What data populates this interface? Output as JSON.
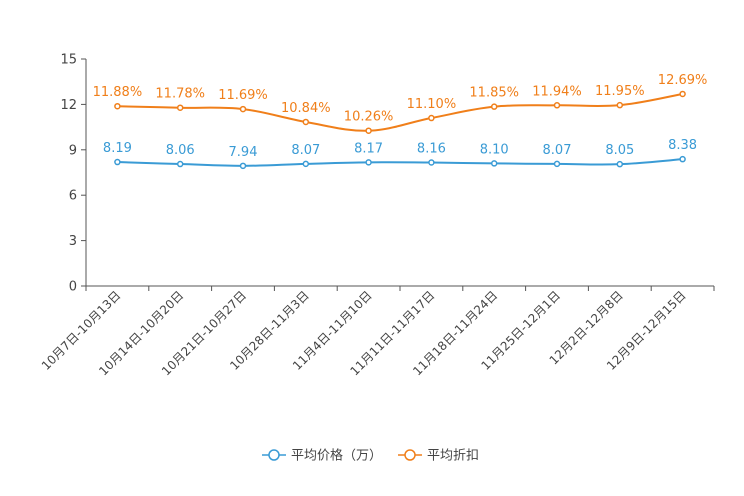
{
  "chart_data": {
    "type": "line",
    "title": "",
    "xlabel": "",
    "ylabel": "",
    "ylim": [
      0,
      15
    ],
    "yticks": [
      0,
      3,
      6,
      9,
      12,
      15
    ],
    "ytick_labels": [
      "0",
      "3",
      "6",
      "9",
      "12",
      "15"
    ],
    "categories": [
      "10月7日-10月13日",
      "10月14日-10月20日",
      "10月21日-10月27日",
      "10月28日-11月3日",
      "11月4日-11月10日",
      "11月11日-11月17日",
      "11月18日-11月24日",
      "11月25日-12月1日",
      "12月2日-12月8日",
      "12月9日-12月15日"
    ],
    "series": [
      {
        "name": "平均价格（万）",
        "color": "#3a9bd5",
        "values": [
          8.19,
          8.06,
          7.94,
          8.07,
          8.17,
          8.16,
          8.1,
          8.07,
          8.05,
          8.38
        ],
        "labels": [
          "8.19",
          "8.06",
          "7.94",
          "8.07",
          "8.17",
          "8.16",
          "8.10",
          "8.07",
          "8.05",
          "8.38"
        ]
      },
      {
        "name": "平均折扣",
        "color": "#f07f1a",
        "values": [
          11.88,
          11.78,
          11.69,
          10.84,
          10.26,
          11.1,
          11.85,
          11.94,
          11.95,
          12.69
        ],
        "labels": [
          "11.88%",
          "11.78%",
          "11.69%",
          "10.84%",
          "10.26%",
          "11.10%",
          "11.85%",
          "11.94%",
          "11.95%",
          "12.69%"
        ]
      }
    ],
    "legend_position": "bottom-center"
  }
}
